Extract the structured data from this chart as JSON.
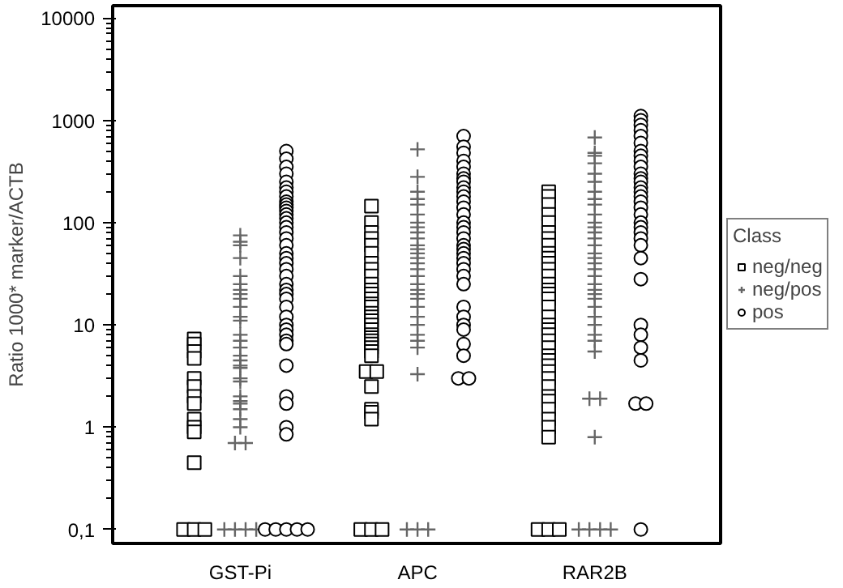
{
  "chart_data": {
    "type": "scatter",
    "ylabel": "Ratio 1000* marker/ACTB",
    "legend_title": "Class",
    "legend": "right",
    "log": "y",
    "grid": false,
    "categories": [
      "GST-Pi",
      "APC",
      "RAR2B"
    ],
    "ylim": [
      0.073,
      13200
    ],
    "yticks": [
      {
        "value": 0.1,
        "label": "0,1"
      },
      1,
      10,
      100,
      1000,
      10000
    ],
    "series": [
      {
        "name": "neg/neg",
        "color": "#000000",
        "marker": "square",
        "x": [
          "GST-Pi",
          "GST-Pi",
          "GST-Pi",
          "GST-Pi",
          "GST-Pi",
          "GST-Pi",
          "GST-Pi",
          "GST-Pi",
          "GST-Pi",
          "GST-Pi",
          "GST-Pi",
          "GST-Pi",
          "GST-Pi",
          "GST-Pi",
          "GST-Pi",
          "APC",
          "APC",
          "APC",
          "APC",
          "APC",
          "APC",
          "APC",
          "APC",
          "APC",
          "APC",
          "APC",
          "APC",
          "APC",
          "APC",
          "APC",
          "APC",
          "APC",
          "APC",
          "APC",
          "APC",
          "APC",
          "APC",
          "APC",
          "APC",
          "APC",
          "APC",
          "APC",
          "APC",
          "APC",
          "APC",
          "APC",
          "APC",
          "APC",
          "APC",
          "APC",
          "APC",
          "RAR2B",
          "RAR2B",
          "RAR2B",
          "RAR2B",
          "RAR2B",
          "RAR2B",
          "RAR2B",
          "RAR2B",
          "RAR2B",
          "RAR2B",
          "RAR2B",
          "RAR2B",
          "RAR2B",
          "RAR2B",
          "RAR2B",
          "RAR2B",
          "RAR2B",
          "RAR2B",
          "RAR2B",
          "RAR2B",
          "RAR2B",
          "RAR2B",
          "RAR2B",
          "RAR2B",
          "RAR2B",
          "RAR2B",
          "RAR2B",
          "RAR2B",
          "RAR2B",
          "RAR2B",
          "RAR2B",
          "RAR2B",
          "RAR2B",
          "RAR2B",
          "RAR2B",
          "RAR2B",
          "RAR2B",
          "RAR2B",
          "RAR2B"
        ],
        "values": [
          7.3,
          6.5,
          5.5,
          4.7,
          3,
          2.5,
          2,
          1.7,
          1.2,
          1,
          0.9,
          0.45,
          0.1,
          0.1,
          0.1,
          145,
          100,
          80,
          70,
          60,
          50,
          40,
          35,
          30,
          25,
          22,
          20,
          18,
          16,
          15,
          13,
          12,
          11,
          10,
          9,
          8,
          7.5,
          7,
          6.5,
          6,
          5.5,
          5,
          3.5,
          3.5,
          2.5,
          1.5,
          1.4,
          1.2,
          0.1,
          0.1,
          0.1,
          200,
          180,
          150,
          120,
          100,
          80,
          70,
          60,
          50,
          45,
          40,
          35,
          30,
          25,
          22,
          20,
          18,
          15,
          12,
          10,
          9,
          8,
          7,
          6,
          5,
          4.5,
          4,
          3.5,
          3,
          2.5,
          2,
          1.8,
          1.5,
          1.2,
          1,
          0.8,
          0.1,
          0.1,
          0.1
        ]
      },
      {
        "name": "neg/pos",
        "color": "#666666",
        "marker": "cross",
        "x": [
          "GST-Pi",
          "GST-Pi",
          "GST-Pi",
          "GST-Pi",
          "GST-Pi",
          "GST-Pi",
          "GST-Pi",
          "GST-Pi",
          "GST-Pi",
          "GST-Pi",
          "GST-Pi",
          "GST-Pi",
          "GST-Pi",
          "GST-Pi",
          "GST-Pi",
          "GST-Pi",
          "GST-Pi",
          "GST-Pi",
          "GST-Pi",
          "GST-Pi",
          "GST-Pi",
          "GST-Pi",
          "GST-Pi",
          "GST-Pi",
          "GST-Pi",
          "GST-Pi",
          "GST-Pi",
          "GST-Pi",
          "GST-Pi",
          "GST-Pi",
          "GST-Pi",
          "GST-Pi",
          "GST-Pi",
          "APC",
          "APC",
          "APC",
          "APC",
          "APC",
          "APC",
          "APC",
          "APC",
          "APC",
          "APC",
          "APC",
          "APC",
          "APC",
          "APC",
          "APC",
          "APC",
          "APC",
          "APC",
          "APC",
          "APC",
          "APC",
          "APC",
          "APC",
          "APC",
          "APC",
          "APC",
          "APC",
          "APC",
          "APC",
          "APC",
          "APC",
          "RAR2B",
          "RAR2B",
          "RAR2B",
          "RAR2B",
          "RAR2B",
          "RAR2B",
          "RAR2B",
          "RAR2B",
          "RAR2B",
          "RAR2B",
          "RAR2B",
          "RAR2B",
          "RAR2B",
          "RAR2B",
          "RAR2B",
          "RAR2B",
          "RAR2B",
          "RAR2B",
          "RAR2B",
          "RAR2B",
          "RAR2B",
          "RAR2B",
          "RAR2B",
          "RAR2B",
          "RAR2B",
          "RAR2B",
          "RAR2B",
          "RAR2B",
          "RAR2B",
          "RAR2B",
          "RAR2B",
          "RAR2B",
          "RAR2B",
          "RAR2B",
          "RAR2B",
          "RAR2B",
          "RAR2B"
        ],
        "values": [
          75,
          65,
          60,
          45,
          30,
          25,
          22,
          20,
          18,
          15,
          12,
          11,
          8,
          7,
          6,
          5,
          4.5,
          4,
          3.8,
          3,
          2.8,
          2,
          1.8,
          1.7,
          1.5,
          1.2,
          1,
          0.7,
          0.7,
          0.1,
          0.1,
          0.1,
          0.1,
          520,
          280,
          200,
          170,
          150,
          120,
          100,
          90,
          80,
          70,
          60,
          55,
          50,
          45,
          40,
          35,
          30,
          25,
          22,
          20,
          18,
          15,
          12,
          10,
          8,
          7,
          6,
          3.3,
          0.1,
          0.1,
          0.1,
          680,
          480,
          450,
          380,
          300,
          250,
          200,
          170,
          150,
          120,
          100,
          90,
          80,
          70,
          60,
          50,
          45,
          40,
          35,
          30,
          25,
          22,
          20,
          18,
          15,
          12,
          10,
          8,
          7,
          5.5,
          1.9,
          1.9,
          0.8,
          0.1,
          0.1,
          0.1,
          0.1
        ]
      },
      {
        "name": "pos",
        "color": "#000000",
        "marker": "circle",
        "x": [
          "GST-Pi",
          "GST-Pi",
          "GST-Pi",
          "GST-Pi",
          "GST-Pi",
          "GST-Pi",
          "GST-Pi",
          "GST-Pi",
          "GST-Pi",
          "GST-Pi",
          "GST-Pi",
          "GST-Pi",
          "GST-Pi",
          "GST-Pi",
          "GST-Pi",
          "GST-Pi",
          "GST-Pi",
          "GST-Pi",
          "GST-Pi",
          "GST-Pi",
          "GST-Pi",
          "GST-Pi",
          "GST-Pi",
          "GST-Pi",
          "GST-Pi",
          "GST-Pi",
          "GST-Pi",
          "GST-Pi",
          "GST-Pi",
          "GST-Pi",
          "GST-Pi",
          "GST-Pi",
          "GST-Pi",
          "GST-Pi",
          "GST-Pi",
          "GST-Pi",
          "GST-Pi",
          "GST-Pi",
          "GST-Pi",
          "GST-Pi",
          "GST-Pi",
          "GST-Pi",
          "GST-Pi",
          "GST-Pi",
          "GST-Pi",
          "APC",
          "APC",
          "APC",
          "APC",
          "APC",
          "APC",
          "APC",
          "APC",
          "APC",
          "APC",
          "APC",
          "APC",
          "APC",
          "APC",
          "APC",
          "APC",
          "APC",
          "APC",
          "APC",
          "APC",
          "APC",
          "APC",
          "APC",
          "APC",
          "APC",
          "APC",
          "APC",
          "APC",
          "APC",
          "APC",
          "APC",
          "APC",
          "APC",
          "APC",
          "RAR2B",
          "RAR2B",
          "RAR2B",
          "RAR2B",
          "RAR2B",
          "RAR2B",
          "RAR2B",
          "RAR2B",
          "RAR2B",
          "RAR2B",
          "RAR2B",
          "RAR2B",
          "RAR2B",
          "RAR2B",
          "RAR2B",
          "RAR2B",
          "RAR2B",
          "RAR2B",
          "RAR2B",
          "RAR2B",
          "RAR2B",
          "RAR2B",
          "RAR2B",
          "RAR2B",
          "RAR2B",
          "RAR2B",
          "RAR2B",
          "RAR2B",
          "RAR2B",
          "RAR2B",
          "RAR2B",
          "RAR2B",
          "RAR2B"
        ],
        "values": [
          500,
          420,
          350,
          300,
          250,
          220,
          200,
          180,
          160,
          150,
          140,
          130,
          120,
          110,
          100,
          90,
          80,
          70,
          60,
          50,
          45,
          40,
          35,
          30,
          25,
          22,
          20,
          18,
          15,
          12,
          10,
          9,
          8,
          7,
          6.5,
          4,
          2,
          1.7,
          1,
          0.85,
          0.1,
          0.1,
          0.1,
          0.1,
          0.1,
          700,
          550,
          480,
          400,
          350,
          300,
          270,
          250,
          220,
          200,
          180,
          160,
          140,
          120,
          100,
          90,
          80,
          70,
          60,
          55,
          50,
          45,
          40,
          35,
          30,
          25,
          15,
          12,
          10,
          9,
          6.5,
          5,
          3,
          3,
          1100,
          1000,
          900,
          800,
          700,
          600,
          500,
          450,
          400,
          350,
          300,
          270,
          250,
          220,
          200,
          180,
          160,
          140,
          120,
          100,
          90,
          80,
          70,
          60,
          45,
          28,
          10,
          8,
          6,
          4.5,
          1.7,
          1.7,
          0.1
        ]
      }
    ]
  }
}
